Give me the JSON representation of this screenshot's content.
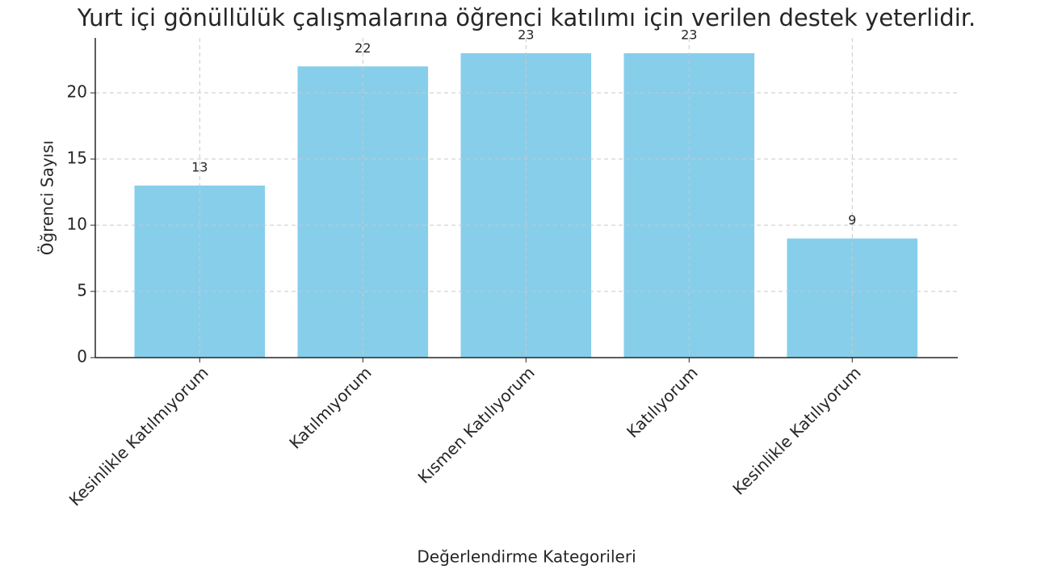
{
  "chart_data": {
    "type": "bar",
    "title": "Yurt içi gönüllülük çalışmalarına öğrenci katılımı için verilen destek yeterlidir.",
    "x_label": "Değerlendirme Kategorileri",
    "y_label": "Öğrenci Sayısı",
    "categories": [
      "Kesinlikle Katılmıyorum",
      "Katılmıyorum",
      "Kısmen Katılıyorum",
      "Katılıyorum",
      "Kesinlikle Katılıyorum"
    ],
    "values": [
      13,
      22,
      23,
      23,
      9
    ],
    "color": "#87ceeb",
    "ylim": [
      0,
      24.15
    ],
    "yticks": [
      0,
      5,
      10,
      15,
      20
    ],
    "grid": true
  }
}
